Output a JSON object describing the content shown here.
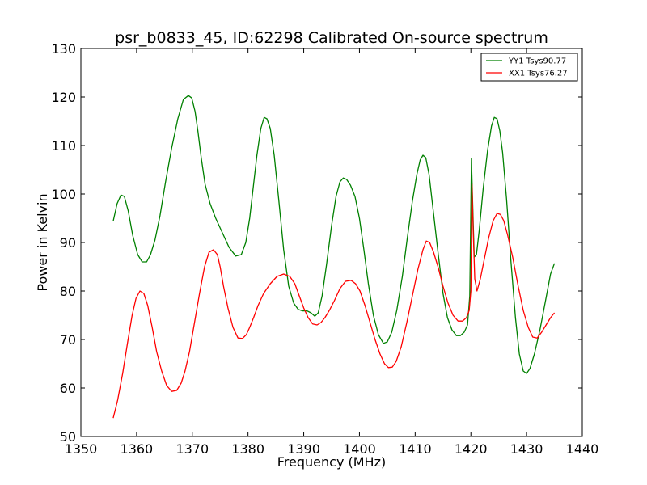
{
  "chart_data": {
    "type": "line",
    "title": "psr_b0833_45, ID:62298 Calibrated On-source spectrum",
    "xlabel": "Frequency (MHz)",
    "ylabel": "Power in Kelvin",
    "xlim": [
      1350,
      1440
    ],
    "ylim": [
      50,
      130
    ],
    "xticks": [
      1350,
      1360,
      1370,
      1380,
      1390,
      1400,
      1410,
      1420,
      1430,
      1440
    ],
    "yticks": [
      50,
      60,
      70,
      80,
      90,
      100,
      110,
      120,
      130
    ],
    "grid": false,
    "legend_position": "top-right",
    "series": [
      {
        "name": "YY1 Tsys90.77",
        "color": "#008000",
        "x": [
          1355.8,
          1356.5,
          1357.2,
          1357.8,
          1358.5,
          1359.3,
          1360.2,
          1361.0,
          1361.8,
          1362.5,
          1363.3,
          1364.2,
          1365.2,
          1366.3,
          1367.4,
          1368.4,
          1369.3,
          1369.9,
          1370.5,
          1371.0,
          1371.6,
          1372.3,
          1373.2,
          1374.2,
          1375.4,
          1376.6,
          1377.8,
          1378.8,
          1379.6,
          1380.3,
          1380.9,
          1381.6,
          1382.3,
          1382.9,
          1383.4,
          1384.0,
          1384.7,
          1385.5,
          1386.4,
          1387.3,
          1388.2,
          1389.0,
          1389.8,
          1390.6,
          1391.3,
          1392.0,
          1392.6,
          1393.3,
          1394.1,
          1395.0,
          1395.8,
          1396.5,
          1397.1,
          1397.7,
          1398.4,
          1399.2,
          1400.0,
          1400.8,
          1401.6,
          1402.5,
          1403.4,
          1404.3,
          1405.0,
          1405.8,
          1406.7,
          1407.7,
          1408.6,
          1409.5,
          1410.3,
          1410.9,
          1411.4,
          1411.9,
          1412.5,
          1413.2,
          1414.1,
          1415.0,
          1415.8,
          1416.6,
          1417.4,
          1418.1,
          1418.8,
          1419.4,
          1419.8,
          1420.1,
          1420.3,
          1420.6,
          1421.0,
          1421.5,
          1422.2,
          1423.0,
          1423.7,
          1424.2,
          1424.7,
          1425.2,
          1425.7,
          1426.4,
          1427.2,
          1428.0,
          1428.7,
          1429.4,
          1430.0,
          1430.6,
          1431.4,
          1432.4,
          1433.4,
          1434.3,
          1435.0
        ],
        "y": [
          94.4,
          98.0,
          99.8,
          99.5,
          96.5,
          91.5,
          87.5,
          86.0,
          86.0,
          87.5,
          90.5,
          95.5,
          102.5,
          109.5,
          115.5,
          119.5,
          120.3,
          119.8,
          117.0,
          113.0,
          107.5,
          102.0,
          98.0,
          95.0,
          92.0,
          89.0,
          87.2,
          87.5,
          90.0,
          95.0,
          101.0,
          108.0,
          113.5,
          115.8,
          115.5,
          113.5,
          108.0,
          99.0,
          88.5,
          81.0,
          77.5,
          76.2,
          75.9,
          75.9,
          75.5,
          74.8,
          75.5,
          79.0,
          85.5,
          93.5,
          99.5,
          102.5,
          103.3,
          103.0,
          101.8,
          99.5,
          95.0,
          88.5,
          81.5,
          75.0,
          71.0,
          69.2,
          69.5,
          71.5,
          76.0,
          83.0,
          91.0,
          98.5,
          104.0,
          107.0,
          108.0,
          107.5,
          104.0,
          97.0,
          88.0,
          79.5,
          74.5,
          72.0,
          70.8,
          70.8,
          71.5,
          73.0,
          79.0,
          107.3,
          99.0,
          87.0,
          87.5,
          92.5,
          101.0,
          109.0,
          114.0,
          115.8,
          115.5,
          113.0,
          108.5,
          99.0,
          86.0,
          74.5,
          67.0,
          63.5,
          63.0,
          64.0,
          67.0,
          72.0,
          78.0,
          83.5,
          85.7
        ]
      },
      {
        "name": "XX1 Tsys76.27",
        "color": "#ff0000",
        "x": [
          1355.8,
          1356.6,
          1357.5,
          1358.4,
          1359.2,
          1359.9,
          1360.6,
          1361.3,
          1362.0,
          1362.8,
          1363.6,
          1364.5,
          1365.4,
          1366.3,
          1367.2,
          1368.0,
          1368.7,
          1369.5,
          1370.4,
          1371.3,
          1372.2,
          1373.0,
          1373.8,
          1374.5,
          1375.0,
          1375.6,
          1376.4,
          1377.3,
          1378.2,
          1379.0,
          1379.7,
          1380.3,
          1381.0,
          1381.8,
          1382.8,
          1384.0,
          1385.2,
          1386.4,
          1387.5,
          1388.4,
          1389.2,
          1390.0,
          1390.8,
          1391.6,
          1392.4,
          1393.1,
          1393.8,
          1394.6,
          1395.5,
          1396.5,
          1397.5,
          1398.5,
          1399.3,
          1400.1,
          1401.0,
          1401.9,
          1402.8,
          1403.7,
          1404.5,
          1405.2,
          1405.9,
          1406.6,
          1407.5,
          1408.5,
          1409.5,
          1410.5,
          1411.4,
          1412.0,
          1412.6,
          1413.3,
          1414.1,
          1415.0,
          1415.9,
          1416.8,
          1417.7,
          1418.5,
          1419.2,
          1419.7,
          1420.0,
          1420.2,
          1420.4,
          1420.7,
          1421.1,
          1421.7,
          1422.4,
          1423.2,
          1424.0,
          1424.7,
          1425.3,
          1425.9,
          1426.6,
          1427.5,
          1428.4,
          1429.4,
          1430.3,
          1431.1,
          1431.9,
          1432.7,
          1433.5,
          1434.3,
          1435.0
        ],
        "y": [
          53.8,
          57.5,
          63.0,
          69.5,
          75.0,
          78.5,
          80.0,
          79.5,
          77.0,
          72.5,
          67.5,
          63.5,
          60.5,
          59.3,
          59.5,
          61.0,
          63.5,
          67.5,
          73.5,
          79.5,
          85.0,
          88.0,
          88.5,
          87.5,
          85.0,
          81.0,
          76.5,
          72.5,
          70.3,
          70.2,
          71.0,
          72.5,
          74.5,
          77.0,
          79.5,
          81.5,
          83.0,
          83.5,
          83.0,
          81.5,
          79.0,
          76.5,
          74.5,
          73.2,
          73.0,
          73.5,
          74.5,
          76.0,
          78.0,
          80.5,
          82.0,
          82.2,
          81.5,
          80.0,
          77.0,
          73.5,
          70.0,
          67.0,
          65.0,
          64.2,
          64.3,
          65.5,
          68.5,
          73.5,
          79.0,
          84.5,
          88.5,
          90.3,
          90.0,
          88.0,
          85.0,
          81.0,
          77.5,
          75.0,
          73.8,
          73.8,
          74.5,
          76.0,
          80.0,
          102.0,
          93.0,
          82.5,
          80.0,
          82.5,
          86.5,
          91.0,
          94.5,
          96.0,
          95.8,
          94.5,
          91.5,
          87.0,
          81.5,
          76.0,
          72.5,
          70.5,
          70.3,
          71.5,
          73.0,
          74.5,
          75.5
        ]
      }
    ]
  }
}
